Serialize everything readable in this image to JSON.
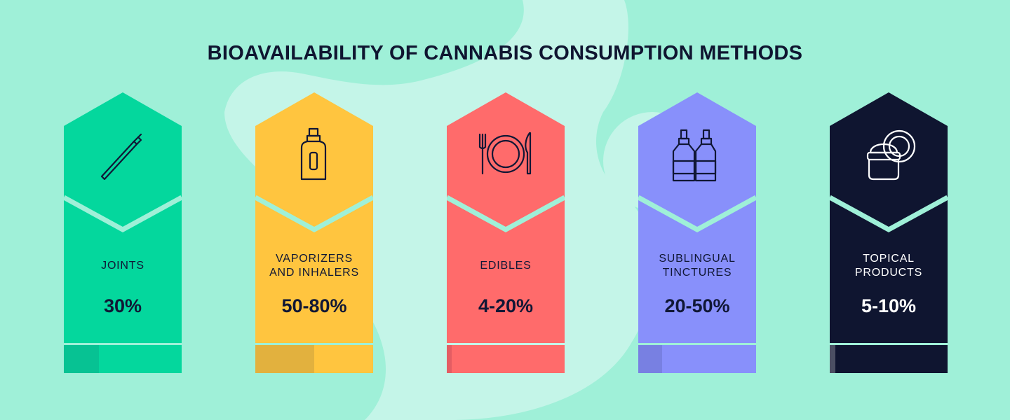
{
  "title": "BIOAVAILABILITY OF CANNABIS CONSUMPTION METHODS",
  "colors": {
    "background": "#9ff0d8",
    "blob": "#c4f5e8",
    "separator": "#9ff0d8"
  },
  "methods": [
    {
      "label": "JOINTS",
      "value": "30%",
      "fraction_low": 0.3,
      "fraction_high": 0.3,
      "color": "#04d79d",
      "bar_color": "#07c293",
      "text_color": "#101735",
      "icon": "joint-icon"
    },
    {
      "label": "VAPORIZERS\nAND INHALERS",
      "value": "50-80%",
      "fraction_low": 0.5,
      "fraction_high": 0.8,
      "color": "#ffc53f",
      "bar_color": "#e2b13e",
      "text_color": "#101735",
      "icon": "vaporizer-icon"
    },
    {
      "label": "EDIBLES",
      "value": "4-20%",
      "fraction_low": 0.04,
      "fraction_high": 0.2,
      "color": "#ff6b6b",
      "bar_color": "#e45d63",
      "text_color": "#101735",
      "icon": "plate-cutlery-icon"
    },
    {
      "label": "SUBLINGUAL\nTINCTURES",
      "value": "20-50%",
      "fraction_low": 0.2,
      "fraction_high": 0.5,
      "color": "#8890fb",
      "bar_color": "#7880e2",
      "text_color": "#101735",
      "icon": "dropper-bottles-icon"
    },
    {
      "label": "TOPICAL\nPRODUCTS",
      "value": "5-10%",
      "fraction_low": 0.05,
      "fraction_high": 0.1,
      "color": "#0f1530",
      "bar_color": "#4b4f63",
      "text_color": "#ffffff",
      "icon": "cream-jar-icon"
    }
  ]
}
